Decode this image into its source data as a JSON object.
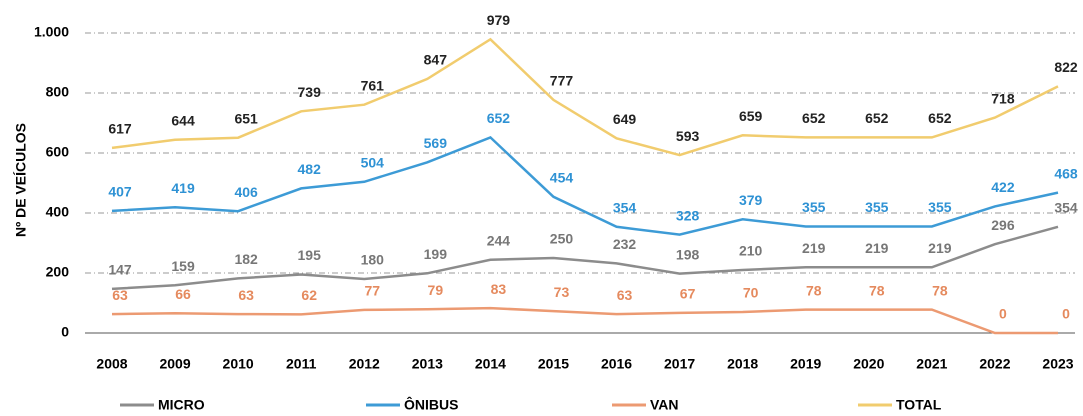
{
  "chart_data": {
    "type": "line",
    "y_label": "Nº DE VEÍCULOS",
    "categories": [
      "2008",
      "2009",
      "2010",
      "2011",
      "2012",
      "2013",
      "2014",
      "2015",
      "2016",
      "2017",
      "2018",
      "2019",
      "2020",
      "2021",
      "2022",
      "2023"
    ],
    "series": [
      {
        "name": "MICRO",
        "color": "#8c8c8c",
        "label_color": "#777777",
        "values": [
          147,
          159,
          182,
          195,
          180,
          199,
          244,
          250,
          232,
          198,
          210,
          219,
          219,
          219,
          296,
          354
        ]
      },
      {
        "name": "ÔNIBUS",
        "color": "#3d9bd6",
        "label_color": "#2f92d4",
        "values": [
          407,
          419,
          406,
          482,
          504,
          569,
          652,
          454,
          354,
          328,
          379,
          355,
          355,
          355,
          422,
          468
        ]
      },
      {
        "name": "VAN",
        "color": "#ec9a72",
        "label_color": "#e58a5e",
        "values": [
          63,
          66,
          63,
          62,
          77,
          79,
          83,
          73,
          63,
          67,
          70,
          78,
          78,
          78,
          0,
          0
        ]
      },
      {
        "name": "TOTAL",
        "color": "#f1cc6e",
        "label_color": "#222222",
        "values": [
          617,
          644,
          651,
          739,
          761,
          847,
          979,
          777,
          649,
          593,
          659,
          652,
          652,
          652,
          718,
          822
        ]
      }
    ],
    "ylim": [
      0,
      1000
    ],
    "yticks": [
      0,
      200,
      400,
      600,
      800,
      {
        "value": 1000,
        "label": "1.000"
      }
    ],
    "grid": true,
    "legend": "bottom"
  }
}
